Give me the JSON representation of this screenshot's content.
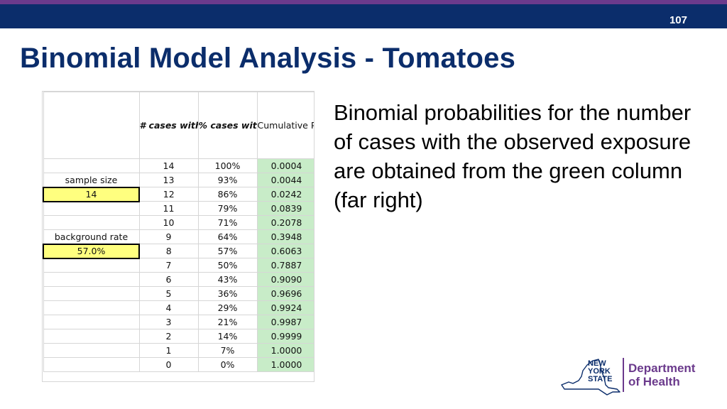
{
  "slide": {
    "number": "107",
    "title": "Binomial Model Analysis - Tomatoes",
    "description": "Binomial probabilities for the number of cases with the observed exposure are obtained from the green column (far right)"
  },
  "table": {
    "headers": {
      "cases": "# cases with exposure",
      "percent": "% cases with exposure",
      "cumulative": "Cumulative Probability"
    },
    "side": {
      "sample_size_label": "sample size",
      "sample_size_value": "14",
      "background_rate_label": "background rate",
      "background_rate_value": "57.0%"
    },
    "rows": [
      {
        "cases": "14",
        "pct": "100%",
        "prob": "0.0004"
      },
      {
        "cases": "13",
        "pct": "93%",
        "prob": "0.0044"
      },
      {
        "cases": "12",
        "pct": "86%",
        "prob": "0.0242"
      },
      {
        "cases": "11",
        "pct": "79%",
        "prob": "0.0839"
      },
      {
        "cases": "10",
        "pct": "71%",
        "prob": "0.2078"
      },
      {
        "cases": "9",
        "pct": "64%",
        "prob": "0.3948"
      },
      {
        "cases": "8",
        "pct": "57%",
        "prob": "0.6063"
      },
      {
        "cases": "7",
        "pct": "50%",
        "prob": "0.7887"
      },
      {
        "cases": "6",
        "pct": "43%",
        "prob": "0.9090"
      },
      {
        "cases": "5",
        "pct": "36%",
        "prob": "0.9696"
      },
      {
        "cases": "4",
        "pct": "29%",
        "prob": "0.9924"
      },
      {
        "cases": "3",
        "pct": "21%",
        "prob": "0.9987"
      },
      {
        "cases": "2",
        "pct": "14%",
        "prob": "0.9999"
      },
      {
        "cases": "1",
        "pct": "7%",
        "prob": "1.0000"
      },
      {
        "cases": "0",
        "pct": "0%",
        "prob": "1.0000"
      }
    ]
  },
  "logo": {
    "state_lines": [
      "NEW",
      "YORK",
      "STATE"
    ],
    "dept_lines": [
      "Department",
      "of Health"
    ],
    "colors": {
      "navy": "#0b2d6b",
      "purple": "#6b3a8c"
    }
  }
}
